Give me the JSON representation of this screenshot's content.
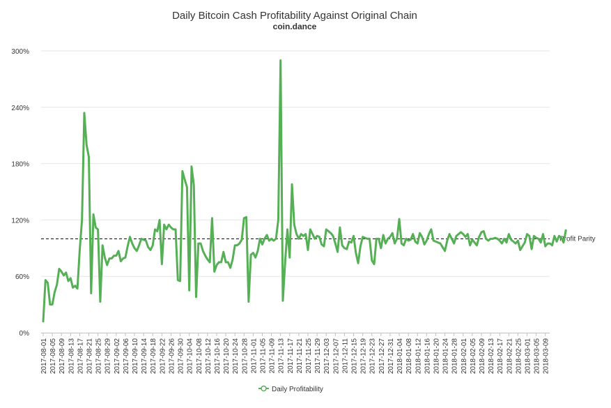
{
  "chart_data": {
    "type": "line",
    "title": "Daily Bitcoin Cash Profitability Against Original Chain",
    "subtitle": "coin.dance",
    "xlabel": "",
    "ylabel": "",
    "ylim": [
      0,
      300
    ],
    "yticks": [
      "0%",
      "60%",
      "120%",
      "180%",
      "240%",
      "300%"
    ],
    "ytick_values": [
      0,
      60,
      120,
      180,
      240,
      300
    ],
    "grid": true,
    "legend": "bottom",
    "x_start": "2017-08-01",
    "x_end": "2018-03-10",
    "xticks": [
      "2017-08-01",
      "2017-08-05",
      "2017-08-09",
      "2017-08-13",
      "2017-08-17",
      "2017-08-21",
      "2017-08-25",
      "2017-08-29",
      "2017-09-02",
      "2017-09-06",
      "2017-09-10",
      "2017-09-14",
      "2017-09-18",
      "2017-09-22",
      "2017-09-26",
      "2017-09-30",
      "2017-10-04",
      "2017-10-08",
      "2017-10-12",
      "2017-10-16",
      "2017-10-20",
      "2017-10-24",
      "2017-10-28",
      "2017-11-01",
      "2017-11-05",
      "2017-11-09",
      "2017-11-13",
      "2017-11-17",
      "2017-11-21",
      "2017-11-25",
      "2017-11-29",
      "2017-12-03",
      "2017-12-07",
      "2017-12-11",
      "2017-12-15",
      "2017-12-19",
      "2017-12-23",
      "2017-12-27",
      "2017-12-31",
      "2018-01-04",
      "2018-01-08",
      "2018-01-12",
      "2018-01-16",
      "2018-01-20",
      "2018-01-24",
      "2018-01-28",
      "2018-02-01",
      "2018-02-05",
      "2018-02-09",
      "2018-02-13",
      "2018-02-17",
      "2018-02-21",
      "2018-02-25",
      "2018-03-01",
      "2018-03-05",
      "2018-03-09"
    ],
    "series": [
      {
        "name": "Daily Profitability",
        "color": "#55b055",
        "values": [
          12,
          56,
          53,
          30,
          30,
          43,
          51,
          68,
          65,
          61,
          64,
          55,
          58,
          48,
          50,
          47,
          88,
          120,
          234,
          200,
          187,
          42,
          126,
          112,
          110,
          33,
          93,
          80,
          72,
          79,
          79,
          82,
          82,
          87,
          76,
          79,
          80,
          92,
          102,
          95,
          90,
          87,
          93,
          100,
          99,
          98,
          91,
          88,
          93,
          110,
          108,
          120,
          73,
          115,
          110,
          115,
          112,
          110,
          110,
          56,
          55,
          172,
          163,
          155,
          45,
          177,
          157,
          38,
          95,
          95,
          87,
          82,
          78,
          75,
          122,
          65,
          72,
          75,
          75,
          86,
          75,
          75,
          69,
          78,
          93,
          93,
          95,
          99,
          122,
          123,
          33,
          83,
          85,
          80,
          87,
          100,
          94,
          100,
          104,
          98,
          100,
          98,
          100,
          120,
          290,
          34,
          75,
          110,
          80,
          158,
          115,
          105,
          100,
          105,
          103,
          105,
          88,
          110,
          105,
          100,
          103,
          102,
          94,
          92,
          110,
          108,
          106,
          103,
          95,
          86,
          112,
          93,
          90,
          89,
          97,
          96,
          103,
          85,
          74,
          92,
          102,
          101,
          100,
          100,
          77,
          73,
          100,
          100,
          90,
          104,
          95,
          100,
          102,
          106,
          95,
          100,
          121,
          95,
          93,
          100,
          98,
          99,
          105,
          97,
          95,
          106,
          102,
          94,
          98,
          105,
          110,
          98,
          97,
          96,
          95,
          91,
          87,
          98,
          105,
          100,
          95,
          103,
          105,
          107,
          105,
          102,
          105,
          93,
          99,
          96,
          93,
          102,
          107,
          108,
          100,
          98,
          100,
          100,
          101,
          100,
          98,
          95,
          100,
          96,
          105,
          99,
          97,
          95,
          98,
          88,
          92,
          96,
          105,
          103,
          89,
          103,
          101,
          100,
          96,
          105,
          92,
          95,
          95,
          93,
          103,
          97,
          103,
          101,
          96,
          109
        ]
      }
    ],
    "reference_line": {
      "value": 100,
      "label": "Profit Parity"
    }
  }
}
